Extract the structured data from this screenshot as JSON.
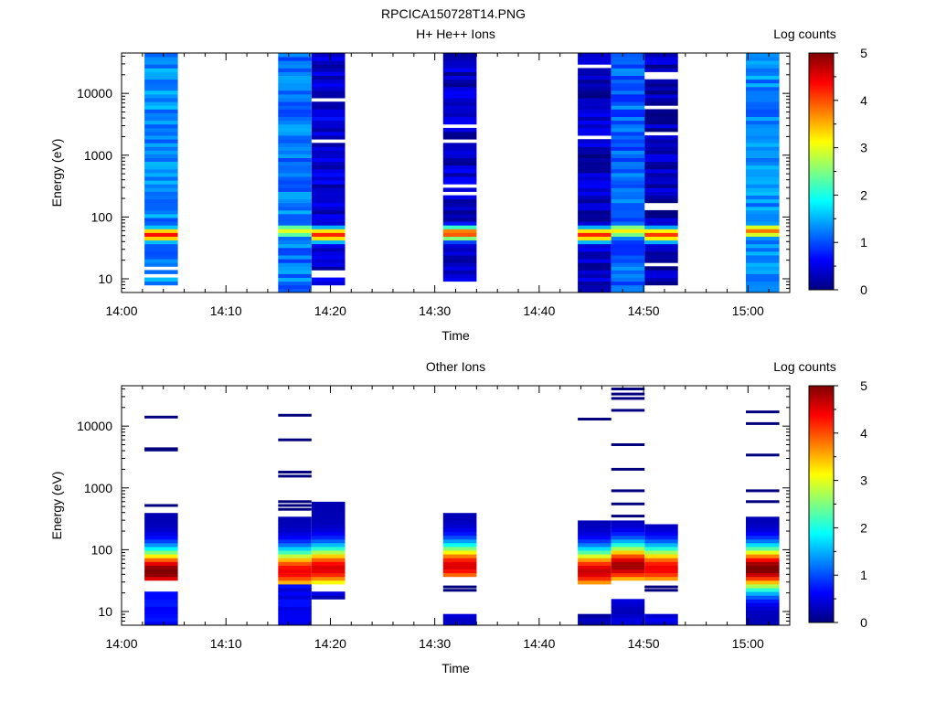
{
  "figure_title": "RPCICA150728T14.PNG",
  "colors": {
    "colormap": [
      "#00007f",
      "#0000ff",
      "#007fff",
      "#00ffff",
      "#7fff7f",
      "#ffff00",
      "#ff7f00",
      "#ff0000",
      "#7f0000"
    ]
  },
  "chart_data": [
    {
      "type": "heatmap",
      "title": "H+ He++ Ions",
      "xlabel": "Time",
      "ylabel": "Energy (eV)",
      "xticks": [
        "14:00",
        "14:10",
        "14:20",
        "14:30",
        "14:40",
        "14:50",
        "15:00"
      ],
      "yticks": [
        "10",
        "100",
        "1000",
        "10000"
      ],
      "xlim_minutes": [
        0,
        64
      ],
      "ylim": [
        6,
        45000
      ],
      "y_scale": "log",
      "colorbar": {
        "label": "Log counts",
        "ticks": [
          "0",
          "1",
          "2",
          "3",
          "4",
          "5"
        ],
        "range": [
          0,
          5
        ]
      },
      "columns": [
        {
          "t_start_min": 2.2,
          "t_end_min": 5.4,
          "peak_energy_eV": 52,
          "peak_log_counts": 4.3,
          "background_log_counts": 1.3,
          "e_min_eV": 8,
          "gaps_eV": [
            11,
            14
          ]
        },
        {
          "t_start_min": 15.0,
          "t_end_min": 18.2,
          "peak_energy_eV": 60,
          "peak_log_counts": 3.0,
          "background_log_counts": 1.2,
          "e_min_eV": 6
        },
        {
          "t_start_min": 18.2,
          "t_end_min": 21.4,
          "peak_energy_eV": 52,
          "peak_log_counts": 4.2,
          "background_log_counts": 0.4,
          "e_min_eV": 8,
          "gaps_eV": [
            8000,
            1800,
            11,
            13
          ]
        },
        {
          "t_start_min": 30.8,
          "t_end_min": 34.0,
          "peak_energy_eV": 55,
          "peak_log_counts": 4.1,
          "background_log_counts": 0.35,
          "e_min_eV": 9,
          "gaps_eV": [
            2800,
            1600,
            300,
            250
          ]
        },
        {
          "t_start_min": 43.7,
          "t_end_min": 46.9,
          "peak_energy_eV": 52,
          "peak_log_counts": 4.2,
          "background_log_counts": 0.3,
          "e_min_eV": 6,
          "gaps_eV": [
            27000,
            1850
          ]
        },
        {
          "t_start_min": 46.9,
          "t_end_min": 50.1,
          "peak_energy_eV": 60,
          "peak_log_counts": 3.2,
          "background_log_counts": 1.1,
          "e_min_eV": 6
        },
        {
          "t_start_min": 50.1,
          "t_end_min": 53.3,
          "peak_energy_eV": 52,
          "peak_log_counts": 4.1,
          "background_log_counts": 0.3,
          "e_min_eV": 8,
          "gaps_eV": [
            21000,
            17000,
            6200,
            2400,
            170,
            140,
            16
          ]
        },
        {
          "t_start_min": 59.8,
          "t_end_min": 63.0,
          "peak_energy_eV": 60,
          "peak_log_counts": 3.8,
          "background_log_counts": 1.3,
          "e_min_eV": 6
        }
      ]
    },
    {
      "type": "heatmap",
      "title": "Other Ions",
      "xlabel": "Time",
      "ylabel": "Energy (eV)",
      "xticks": [
        "14:00",
        "14:10",
        "14:20",
        "14:30",
        "14:40",
        "14:50",
        "15:00"
      ],
      "yticks": [
        "10",
        "100",
        "1000",
        "10000"
      ],
      "xlim_minutes": [
        0,
        64
      ],
      "ylim": [
        6,
        45000
      ],
      "y_scale": "log",
      "colorbar": {
        "label": "Log counts",
        "ticks": [
          "0",
          "1",
          "2",
          "3",
          "4",
          "5"
        ],
        "range": [
          0,
          5
        ]
      },
      "columns": [
        {
          "t_start_min": 2.2,
          "t_end_min": 5.4,
          "peak_energy_eV": 45,
          "peak_log_counts": 4.8,
          "band_eV": [
            30,
            380
          ],
          "low_block_eV": [
            6,
            20
          ],
          "low_block_log_counts": 0.5,
          "lines_eV": [
            14000,
            4300,
            4100,
            520
          ]
        },
        {
          "t_start_min": 15.0,
          "t_end_min": 18.2,
          "peak_energy_eV": 45,
          "peak_log_counts": 4.2,
          "band_eV": [
            26,
            330
          ],
          "low_block_eV": [
            6,
            26
          ],
          "low_block_log_counts": 0.4,
          "lines_eV": [
            15000,
            6000,
            1800,
            1550,
            600,
            520,
            450
          ]
        },
        {
          "t_start_min": 18.2,
          "t_end_min": 21.4,
          "peak_energy_eV": 50,
          "peak_log_counts": 4.3,
          "band_eV": [
            26,
            560
          ],
          "low_block_eV": [
            15,
            20
          ],
          "low_block_log_counts": 0.2,
          "lines_eV": []
        },
        {
          "t_start_min": 30.8,
          "t_end_min": 34.0,
          "peak_energy_eV": 55,
          "peak_log_counts": 4.3,
          "band_eV": [
            38,
            420
          ],
          "low_block_eV": [
            6,
            9
          ],
          "low_block_log_counts": 0.3,
          "lines_eV": [
            25,
            22
          ]
        },
        {
          "t_start_min": 43.7,
          "t_end_min": 46.9,
          "peak_energy_eV": 45,
          "peak_log_counts": 4.4,
          "band_eV": [
            28,
            300
          ],
          "low_block_eV": [
            6,
            9
          ],
          "low_block_log_counts": 0.1,
          "lines_eV": [
            13000
          ]
        },
        {
          "t_start_min": 46.9,
          "t_end_min": 50.1,
          "peak_energy_eV": 55,
          "peak_log_counts": 4.6,
          "band_eV": [
            34,
            280
          ],
          "low_block_eV": [
            6,
            15
          ],
          "low_block_log_counts": 0.2,
          "lines_eV": [
            40000,
            33000,
            28000,
            18000,
            5000,
            2000,
            900,
            550,
            350
          ]
        },
        {
          "t_start_min": 50.1,
          "t_end_min": 53.3,
          "peak_energy_eV": 50,
          "peak_log_counts": 4.2,
          "band_eV": [
            30,
            260
          ],
          "low_block_eV": [
            6,
            9
          ],
          "low_block_log_counts": 0.3,
          "lines_eV": [
            25,
            22
          ]
        },
        {
          "t_start_min": 59.8,
          "t_end_min": 63.0,
          "peak_energy_eV": 50,
          "peak_log_counts": 4.8,
          "band_eV": [
            6,
            320
          ],
          "low_block_eV": [
            6,
            6
          ],
          "low_block_log_counts": 1.0,
          "lines_eV": [
            17000,
            11000,
            3400,
            900,
            600
          ]
        }
      ]
    }
  ]
}
